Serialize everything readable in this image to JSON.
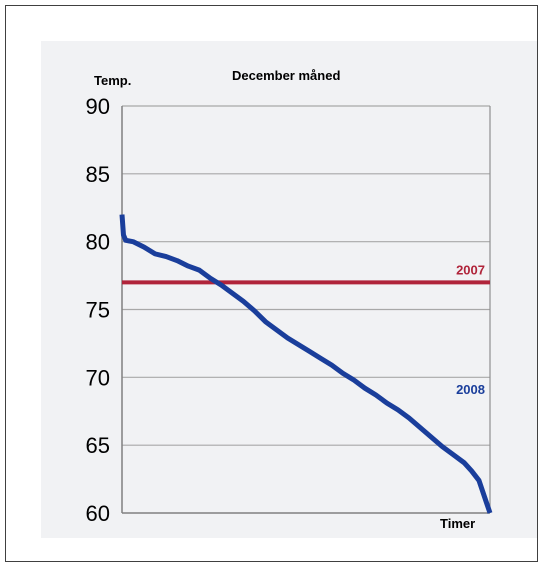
{
  "chart_data": {
    "type": "line",
    "title": "December måned",
    "ylabel": "Temp.",
    "xlabel": "Timer",
    "ylim": [
      60,
      90
    ],
    "yticks": [
      "90",
      "85",
      "80",
      "75",
      "70",
      "65",
      "60"
    ],
    "grid": true,
    "series": [
      {
        "name": "2007",
        "color": "#b0243a",
        "x": [
          0,
          1
        ],
        "y": [
          77,
          77
        ]
      },
      {
        "name": "2008",
        "color": "#1a3e9b",
        "x": [
          0,
          0.004,
          0.01,
          0.03,
          0.06,
          0.09,
          0.12,
          0.15,
          0.18,
          0.21,
          0.24,
          0.27,
          0.3,
          0.33,
          0.36,
          0.39,
          0.42,
          0.45,
          0.48,
          0.51,
          0.54,
          0.57,
          0.6,
          0.63,
          0.66,
          0.69,
          0.72,
          0.75,
          0.78,
          0.81,
          0.84,
          0.87,
          0.9,
          0.93,
          0.95,
          0.97,
          0.98,
          0.99,
          1.0
        ],
        "y": [
          82,
          80.5,
          80.1,
          80.0,
          79.6,
          79.1,
          78.9,
          78.6,
          78.2,
          77.9,
          77.3,
          76.8,
          76.2,
          75.6,
          74.9,
          74.1,
          73.5,
          72.9,
          72.4,
          71.9,
          71.4,
          70.9,
          70.3,
          69.8,
          69.2,
          68.7,
          68.1,
          67.6,
          67.0,
          66.3,
          65.6,
          64.9,
          64.3,
          63.7,
          63.1,
          62.4,
          61.6,
          60.8,
          59.8
        ]
      }
    ]
  }
}
